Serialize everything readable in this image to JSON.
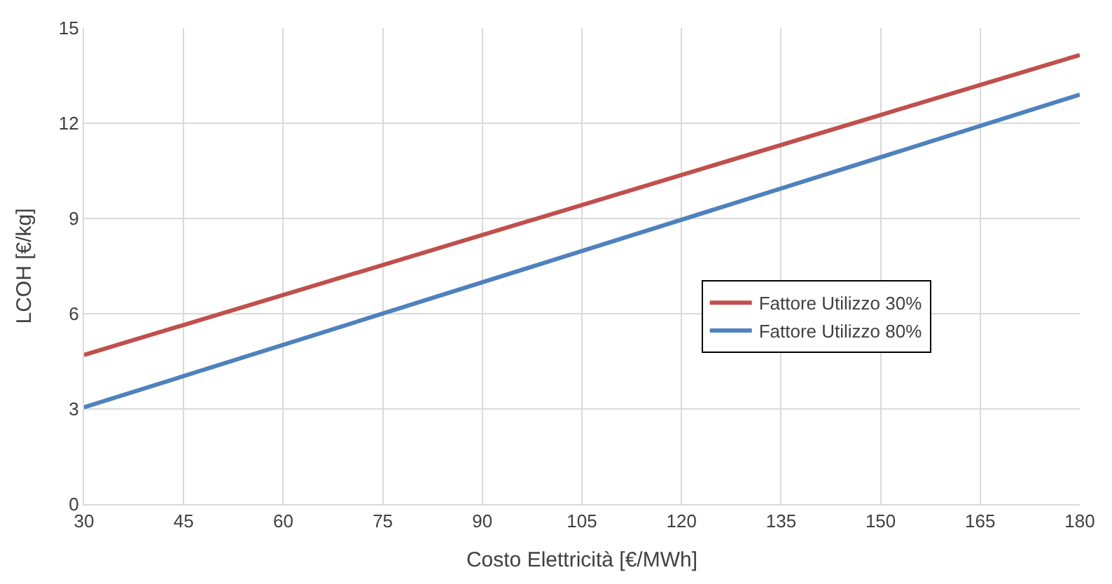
{
  "chart_data": {
    "type": "line",
    "xlabel": "Costo Elettricità [€/MWh]",
    "ylabel": "LCOH [€/kg]",
    "x": [
      30,
      180
    ],
    "series": [
      {
        "name": "Fattore Utilizzo 30%",
        "color": "#c0504d",
        "values": [
          4.7,
          14.15
        ]
      },
      {
        "name": "Fattore Utilizzo 80%",
        "color": "#4f81bd",
        "values": [
          3.05,
          12.9
        ]
      }
    ],
    "xlim": [
      30,
      180
    ],
    "xticks": [
      30,
      45,
      60,
      75,
      90,
      105,
      120,
      135,
      150,
      165,
      180
    ],
    "ylim": [
      0,
      15
    ],
    "yticks": [
      0,
      3,
      6,
      9,
      12,
      15
    ],
    "grid": true,
    "legend": "right",
    "marker": "none",
    "line_style": "solid"
  }
}
